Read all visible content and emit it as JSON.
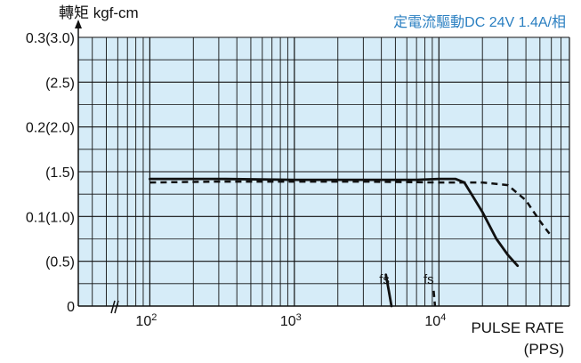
{
  "chart_data": {
    "type": "line",
    "title": "",
    "subtitle": "定電流驅動DC 24V 1.4A/相",
    "ylabel": "轉矩 kgf-cm",
    "xlabel": "PULSE RATE",
    "xunit": "(PPS)",
    "xscale": "log",
    "xlim": [
      32,
      80000
    ],
    "ylim": [
      0,
      0.3
    ],
    "x_ticks": [
      {
        "value": 100,
        "base": "10",
        "exp": "2"
      },
      {
        "value": 1000,
        "base": "10",
        "exp": "3"
      },
      {
        "value": 10000,
        "base": "10",
        "exp": "4"
      }
    ],
    "y_ticks": [
      {
        "value": 0.3,
        "label": "0.3(3.0)"
      },
      {
        "value": 0.25,
        "label": "(2.5)"
      },
      {
        "value": 0.2,
        "label": "0.2(2.0)"
      },
      {
        "value": 0.15,
        "label": "(1.5)"
      },
      {
        "value": 0.1,
        "label": "0.1(1.0)"
      },
      {
        "value": 0.05,
        "label": "(0.5)"
      },
      {
        "value": 0,
        "label": "0"
      }
    ],
    "grid": true,
    "background_color": "#d6ecf8",
    "line_color": "#111111",
    "subtitle_color": "#2a7fc1",
    "series": [
      {
        "style": "solid",
        "x": [
          100,
          300,
          1000,
          3000,
          7000,
          10000,
          13000,
          15000,
          20000,
          25000,
          30000,
          35000
        ],
        "y": [
          0.142,
          0.142,
          0.141,
          0.141,
          0.141,
          0.142,
          0.142,
          0.138,
          0.105,
          0.075,
          0.057,
          0.045
        ]
      },
      {
        "style": "dashed",
        "x": [
          100,
          300,
          1000,
          3000,
          10000,
          20000,
          30000,
          40000,
          50000,
          60000
        ],
        "y": [
          0.138,
          0.139,
          0.139,
          0.139,
          0.138,
          0.138,
          0.135,
          0.118,
          0.095,
          0.078
        ]
      },
      {
        "style": "solid",
        "x": [
          4300,
          4500,
          4700
        ],
        "y": [
          0.035,
          0.017,
          0.0
        ]
      },
      {
        "style": "dashed",
        "x": [
          9200,
          9300,
          9400
        ],
        "y": [
          0.017,
          0.008,
          0.0
        ]
      }
    ],
    "annotations": [
      {
        "text": "fs",
        "x": 4200,
        "y": 0.025
      },
      {
        "text": "fs",
        "x": 8500,
        "y": 0.025
      }
    ],
    "axis_break": true
  }
}
